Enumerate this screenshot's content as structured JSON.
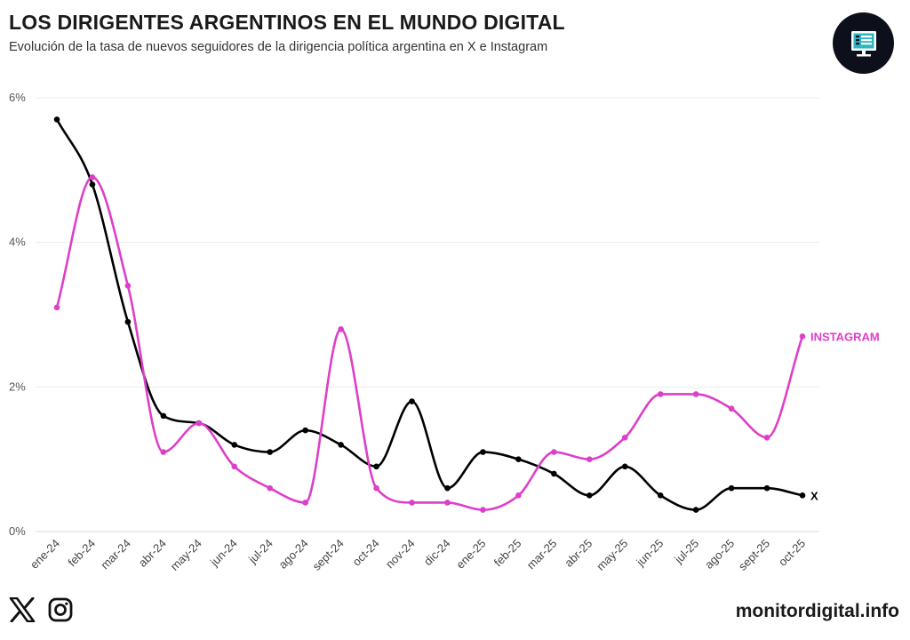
{
  "header": {
    "title": "LOS DIRIGENTES ARGENTINOS EN EL MUNDO DIGITAL",
    "subtitle": "Evolución de la tasa de nuevos seguidores de la dirigencia política argentina en X e Instagram"
  },
  "footer": {
    "site": "monitordigital.info",
    "icons": [
      "x-logo-icon",
      "instagram-logo-icon"
    ]
  },
  "logo": {
    "icon": "monitor-icon"
  },
  "chart_data": {
    "type": "line",
    "title": "LOS DIRIGENTES ARGENTINOS EN EL MUNDO DIGITAL",
    "subtitle": "Evolución de la tasa de nuevos seguidores de la dirigencia política argentina en X e Instagram",
    "xlabel": "",
    "ylabel": "",
    "ylim": [
      0,
      6
    ],
    "yticks": [
      0,
      2,
      4,
      6
    ],
    "ytick_labels": [
      "0%",
      "2%",
      "4%",
      "6%"
    ],
    "grid": true,
    "categories": [
      "ene-24",
      "feb-24",
      "mar-24",
      "abr-24",
      "may-24",
      "jun-24",
      "jul-24",
      "ago-24",
      "sept-24",
      "oct-24",
      "nov-24",
      "dic-24",
      "ene-25",
      "feb-25",
      "mar-25",
      "abr-25",
      "may-25",
      "jun-25",
      "jul-25",
      "ago-25",
      "sept-25",
      "oct-25"
    ],
    "series": [
      {
        "name": "X",
        "label": "X",
        "color": "#000000",
        "values": [
          5.7,
          4.8,
          2.9,
          1.6,
          1.5,
          1.2,
          1.1,
          1.4,
          1.2,
          0.9,
          1.8,
          0.6,
          1.1,
          1.0,
          0.8,
          0.5,
          0.9,
          0.5,
          0.3,
          0.6,
          0.6,
          0.5
        ]
      },
      {
        "name": "Instagram",
        "label": "INSTAGRAM",
        "color": "#dd3fc8",
        "values": [
          3.1,
          4.9,
          3.4,
          1.1,
          1.5,
          0.9,
          0.6,
          0.4,
          2.8,
          0.6,
          0.4,
          0.4,
          0.3,
          0.5,
          1.1,
          1.0,
          1.3,
          1.9,
          1.9,
          1.7,
          1.3,
          2.7
        ]
      }
    ]
  }
}
